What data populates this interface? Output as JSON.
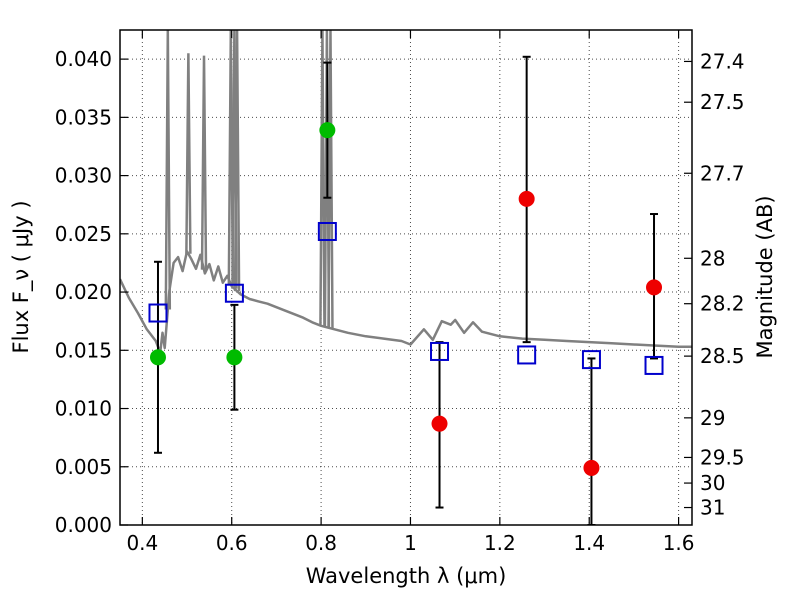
{
  "chart_data": {
    "type": "scatter",
    "title": "",
    "xlabel": "Wavelength  λ (μm)",
    "ylabel": "Flux  F_ν ( μJy )",
    "ylabel_right": "Magnitude (AB)",
    "xlim": [
      0.35,
      1.63
    ],
    "ylim": [
      0.0,
      0.0425
    ],
    "grid": true,
    "x_ticks": [
      0.4,
      0.6,
      0.8,
      1.0,
      1.2,
      1.4,
      1.6
    ],
    "x_tick_labels": [
      "0.4",
      "0.6",
      "0.8",
      "1",
      "1.2",
      "1.4",
      "1.6"
    ],
    "y_ticks": [
      0.0,
      0.005,
      0.01,
      0.015,
      0.02,
      0.025,
      0.03,
      0.035,
      0.04
    ],
    "y_tick_labels": [
      "0.000",
      "0.005",
      "0.010",
      "0.015",
      "0.020",
      "0.025",
      "0.030",
      "0.035",
      "0.040"
    ],
    "right_axis": {
      "labels": [
        "27.4",
        "27.5",
        "27.7",
        "28",
        "28.2",
        "28.5",
        "29",
        "29.5",
        "30",
        "31"
      ],
      "flux_positions": [
        0.0398,
        0.0363,
        0.0302,
        0.0229,
        0.019,
        0.0145,
        0.0092,
        0.0058,
        0.0036,
        0.0015
      ]
    },
    "series": [
      {
        "kind": "model",
        "color": "#808080",
        "x": [
          0.35,
          0.37,
          0.39,
          0.41,
          0.43,
          0.44,
          0.445,
          0.45,
          0.455,
          0.46,
          0.47,
          0.48,
          0.49,
          0.5,
          0.51,
          0.52,
          0.53,
          0.54,
          0.55,
          0.56,
          0.57,
          0.58,
          0.59,
          0.6,
          0.62,
          0.64,
          0.66,
          0.68,
          0.7,
          0.72,
          0.74,
          0.76,
          0.78,
          0.8,
          0.83,
          0.86,
          0.9,
          0.94,
          0.98,
          1.0,
          1.03,
          1.05,
          1.07,
          1.09,
          1.1,
          1.12,
          1.14,
          1.16,
          1.2,
          1.25,
          1.3,
          1.35,
          1.4,
          1.45,
          1.5,
          1.55,
          1.6,
          1.63
        ],
        "y": [
          0.0211,
          0.0195,
          0.0182,
          0.0168,
          0.0158,
          0.0148,
          0.0165,
          0.0152,
          0.0175,
          0.02,
          0.0225,
          0.023,
          0.0218,
          0.0235,
          0.0228,
          0.022,
          0.0232,
          0.0216,
          0.0224,
          0.021,
          0.0222,
          0.0208,
          0.0214,
          0.0205,
          0.0198,
          0.0194,
          0.0192,
          0.019,
          0.0187,
          0.0184,
          0.0181,
          0.0178,
          0.0174,
          0.0171,
          0.0168,
          0.0165,
          0.0162,
          0.016,
          0.0158,
          0.0155,
          0.0168,
          0.0159,
          0.0175,
          0.0172,
          0.0176,
          0.0165,
          0.0174,
          0.0166,
          0.0162,
          0.016,
          0.0159,
          0.0158,
          0.0157,
          0.0156,
          0.0155,
          0.0154,
          0.0153,
          0.0153
        ],
        "spikes": [
          {
            "x": 0.457,
            "y": 0.0425
          },
          {
            "x": 0.503,
            "y": 0.0405
          },
          {
            "x": 0.538,
            "y": 0.0403
          },
          {
            "x": 0.598,
            "y": 0.0425
          },
          {
            "x": 0.606,
            "y": 0.0425
          },
          {
            "x": 0.612,
            "y": 0.0425
          },
          {
            "x": 0.803,
            "y": 0.0425
          },
          {
            "x": 0.813,
            "y": 0.0425
          },
          {
            "x": 0.821,
            "y": 0.0425
          }
        ]
      },
      {
        "kind": "model-points",
        "marker": "open-square",
        "color": "#0000cc",
        "x": [
          0.435,
          0.606,
          0.814,
          1.065,
          1.26,
          1.405,
          1.545
        ],
        "y": [
          0.0182,
          0.0199,
          0.0252,
          0.0149,
          0.0146,
          0.0142,
          0.0137
        ]
      },
      {
        "kind": "observed",
        "marker": "filled-circle",
        "color": "#00bb00",
        "x": [
          0.435,
          0.606,
          0.814
        ],
        "y": [
          0.0144,
          0.0144,
          0.0339
        ],
        "err_low": [
          0.0062,
          0.0099,
          0.0281
        ],
        "err_high": [
          0.0226,
          0.0189,
          0.0397
        ]
      },
      {
        "kind": "observed",
        "marker": "filled-circle",
        "color": "#ee0000",
        "x": [
          1.065,
          1.26,
          1.405,
          1.545
        ],
        "y": [
          0.0087,
          0.028,
          0.0049,
          0.0204
        ],
        "err_low": [
          0.0015,
          0.0157,
          0.0,
          0.0143
        ],
        "err_high": [
          0.0157,
          0.0402,
          0.0143,
          0.0267
        ]
      }
    ]
  }
}
